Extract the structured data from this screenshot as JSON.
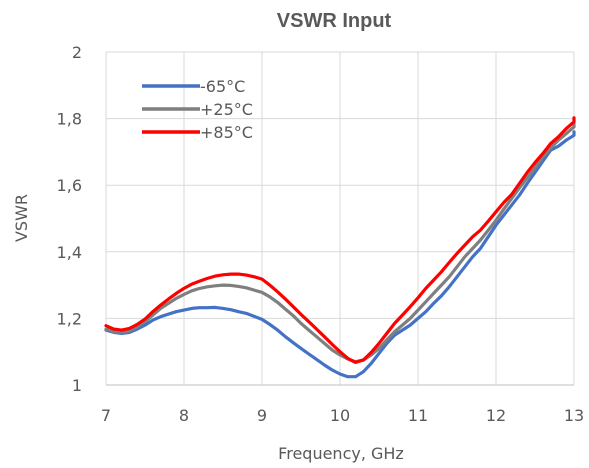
{
  "chart_data": {
    "type": "line",
    "title": "VSWR Input",
    "xlabel": "Frequency, GHz",
    "ylabel": "VSWR",
    "xlim": [
      7,
      13
    ],
    "ylim": [
      1,
      2
    ],
    "x_ticks": [
      "7",
      "8",
      "9",
      "10",
      "11",
      "12",
      "13"
    ],
    "y_ticks": [
      "1",
      "1,2",
      "1,4",
      "1,6",
      "1,8",
      "2"
    ],
    "grid": true,
    "legend_position": "top-left",
    "series": [
      {
        "name": "-65°C",
        "color": "#4472C4",
        "points": [
          [
            7.0,
            1.165
          ],
          [
            7.1,
            1.158
          ],
          [
            7.2,
            1.155
          ],
          [
            7.3,
            1.158
          ],
          [
            7.4,
            1.168
          ],
          [
            7.5,
            1.18
          ],
          [
            7.6,
            1.195
          ],
          [
            7.7,
            1.205
          ],
          [
            7.8,
            1.213
          ],
          [
            7.9,
            1.22
          ],
          [
            8.0,
            1.225
          ],
          [
            8.1,
            1.23
          ],
          [
            8.2,
            1.232
          ],
          [
            8.3,
            1.232
          ],
          [
            8.4,
            1.233
          ],
          [
            8.5,
            1.23
          ],
          [
            8.6,
            1.226
          ],
          [
            8.7,
            1.22
          ],
          [
            8.8,
            1.215
          ],
          [
            8.9,
            1.206
          ],
          [
            9.0,
            1.197
          ],
          [
            9.1,
            1.182
          ],
          [
            9.2,
            1.165
          ],
          [
            9.3,
            1.145
          ],
          [
            9.4,
            1.127
          ],
          [
            9.5,
            1.11
          ],
          [
            9.6,
            1.093
          ],
          [
            9.7,
            1.077
          ],
          [
            9.8,
            1.06
          ],
          [
            9.9,
            1.045
          ],
          [
            10.0,
            1.033
          ],
          [
            10.1,
            1.025
          ],
          [
            10.2,
            1.025
          ],
          [
            10.3,
            1.04
          ],
          [
            10.4,
            1.065
          ],
          [
            10.5,
            1.095
          ],
          [
            10.6,
            1.125
          ],
          [
            10.7,
            1.15
          ],
          [
            10.8,
            1.165
          ],
          [
            10.9,
            1.18
          ],
          [
            11.0,
            1.2
          ],
          [
            11.1,
            1.22
          ],
          [
            11.2,
            1.245
          ],
          [
            11.3,
            1.268
          ],
          [
            11.4,
            1.295
          ],
          [
            11.5,
            1.325
          ],
          [
            11.6,
            1.355
          ],
          [
            11.7,
            1.385
          ],
          [
            11.8,
            1.41
          ],
          [
            11.9,
            1.445
          ],
          [
            12.0,
            1.48
          ],
          [
            12.1,
            1.51
          ],
          [
            12.2,
            1.54
          ],
          [
            12.3,
            1.57
          ],
          [
            12.4,
            1.605
          ],
          [
            12.5,
            1.638
          ],
          [
            12.6,
            1.672
          ],
          [
            12.7,
            1.705
          ],
          [
            12.8,
            1.717
          ],
          [
            12.9,
            1.735
          ],
          [
            13.0,
            1.75
          ],
          [
            13.05,
            1.76
          ]
        ]
      },
      {
        "name": "+25°C",
        "color": "#7F7F7F",
        "points": [
          [
            7.0,
            1.168
          ],
          [
            7.1,
            1.16
          ],
          [
            7.2,
            1.158
          ],
          [
            7.3,
            1.162
          ],
          [
            7.4,
            1.175
          ],
          [
            7.5,
            1.19
          ],
          [
            7.6,
            1.21
          ],
          [
            7.7,
            1.23
          ],
          [
            7.8,
            1.245
          ],
          [
            7.9,
            1.26
          ],
          [
            8.0,
            1.272
          ],
          [
            8.1,
            1.283
          ],
          [
            8.2,
            1.29
          ],
          [
            8.3,
            1.295
          ],
          [
            8.4,
            1.298
          ],
          [
            8.5,
            1.3
          ],
          [
            8.6,
            1.299
          ],
          [
            8.7,
            1.296
          ],
          [
            8.8,
            1.292
          ],
          [
            8.9,
            1.285
          ],
          [
            9.0,
            1.278
          ],
          [
            9.1,
            1.265
          ],
          [
            9.2,
            1.248
          ],
          [
            9.3,
            1.228
          ],
          [
            9.4,
            1.208
          ],
          [
            9.5,
            1.185
          ],
          [
            9.6,
            1.165
          ],
          [
            9.7,
            1.145
          ],
          [
            9.8,
            1.125
          ],
          [
            9.9,
            1.105
          ],
          [
            10.0,
            1.09
          ],
          [
            10.1,
            1.078
          ],
          [
            10.2,
            1.07
          ],
          [
            10.3,
            1.075
          ],
          [
            10.4,
            1.09
          ],
          [
            10.5,
            1.11
          ],
          [
            10.6,
            1.135
          ],
          [
            10.7,
            1.16
          ],
          [
            10.8,
            1.18
          ],
          [
            10.9,
            1.2
          ],
          [
            11.0,
            1.225
          ],
          [
            11.1,
            1.25
          ],
          [
            11.2,
            1.275
          ],
          [
            11.3,
            1.3
          ],
          [
            11.4,
            1.325
          ],
          [
            11.5,
            1.355
          ],
          [
            11.6,
            1.385
          ],
          [
            11.7,
            1.41
          ],
          [
            11.8,
            1.435
          ],
          [
            11.9,
            1.465
          ],
          [
            12.0,
            1.495
          ],
          [
            12.1,
            1.528
          ],
          [
            12.2,
            1.56
          ],
          [
            12.3,
            1.592
          ],
          [
            12.4,
            1.622
          ],
          [
            12.5,
            1.652
          ],
          [
            12.6,
            1.685
          ],
          [
            12.7,
            1.712
          ],
          [
            12.8,
            1.735
          ],
          [
            12.9,
            1.755
          ],
          [
            13.0,
            1.775
          ],
          [
            13.05,
            1.785
          ]
        ]
      },
      {
        "name": "+85°C",
        "color": "#FF0000",
        "points": [
          [
            7.0,
            1.178
          ],
          [
            7.1,
            1.168
          ],
          [
            7.2,
            1.165
          ],
          [
            7.3,
            1.17
          ],
          [
            7.4,
            1.182
          ],
          [
            7.5,
            1.198
          ],
          [
            7.6,
            1.22
          ],
          [
            7.7,
            1.24
          ],
          [
            7.8,
            1.258
          ],
          [
            7.9,
            1.275
          ],
          [
            8.0,
            1.29
          ],
          [
            8.1,
            1.303
          ],
          [
            8.2,
            1.312
          ],
          [
            8.3,
            1.32
          ],
          [
            8.4,
            1.327
          ],
          [
            8.5,
            1.331
          ],
          [
            8.6,
            1.333
          ],
          [
            8.7,
            1.333
          ],
          [
            8.8,
            1.33
          ],
          [
            8.9,
            1.325
          ],
          [
            9.0,
            1.318
          ],
          [
            9.1,
            1.3
          ],
          [
            9.2,
            1.28
          ],
          [
            9.3,
            1.258
          ],
          [
            9.4,
            1.235
          ],
          [
            9.5,
            1.212
          ],
          [
            9.6,
            1.19
          ],
          [
            9.7,
            1.168
          ],
          [
            9.8,
            1.145
          ],
          [
            9.9,
            1.122
          ],
          [
            10.0,
            1.1
          ],
          [
            10.1,
            1.08
          ],
          [
            10.2,
            1.068
          ],
          [
            10.3,
            1.075
          ],
          [
            10.4,
            1.098
          ],
          [
            10.5,
            1.125
          ],
          [
            10.6,
            1.155
          ],
          [
            10.7,
            1.185
          ],
          [
            10.8,
            1.21
          ],
          [
            10.9,
            1.235
          ],
          [
            11.0,
            1.262
          ],
          [
            11.1,
            1.29
          ],
          [
            11.2,
            1.315
          ],
          [
            11.3,
            1.34
          ],
          [
            11.4,
            1.368
          ],
          [
            11.5,
            1.395
          ],
          [
            11.6,
            1.42
          ],
          [
            11.7,
            1.445
          ],
          [
            11.8,
            1.465
          ],
          [
            11.9,
            1.492
          ],
          [
            12.0,
            1.52
          ],
          [
            12.1,
            1.548
          ],
          [
            12.2,
            1.572
          ],
          [
            12.3,
            1.605
          ],
          [
            12.4,
            1.638
          ],
          [
            12.5,
            1.668
          ],
          [
            12.6,
            1.695
          ],
          [
            12.7,
            1.725
          ],
          [
            12.8,
            1.745
          ],
          [
            12.9,
            1.77
          ],
          [
            13.0,
            1.79
          ],
          [
            13.05,
            1.802
          ]
        ]
      }
    ]
  }
}
